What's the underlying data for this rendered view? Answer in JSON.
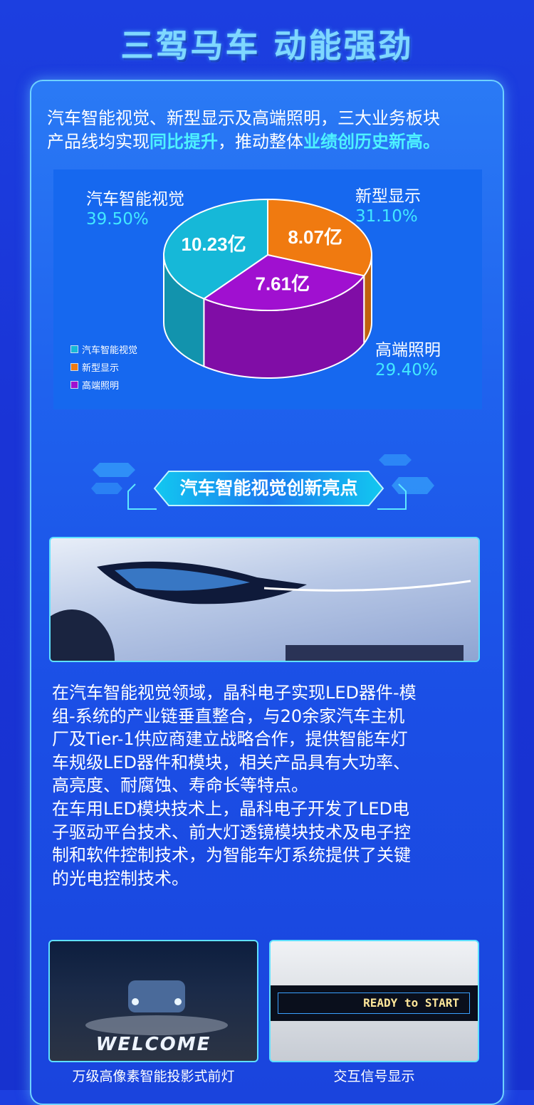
{
  "title": "三驾马车  动能强劲",
  "intro": {
    "line1": "汽车智能视觉、新型显示及高端照明，三大业务板块",
    "line2_a": "产品线均实现",
    "line2_hl1": "同比提升",
    "line2_b": "，推动整体",
    "line2_hl2": "业绩创历史新高。"
  },
  "chart_data": {
    "type": "pie",
    "style": "3d",
    "unit": "亿",
    "slices": [
      {
        "name": "汽车智能视觉",
        "value": 10.23,
        "value_label": "10.23亿",
        "percent": "39.50%",
        "color": "#16b8d8"
      },
      {
        "name": "新型显示",
        "value": 8.07,
        "value_label": "8.07亿",
        "percent": "31.10%",
        "color": "#f07a10"
      },
      {
        "name": "高端照明",
        "value": 7.61,
        "value_label": "7.61亿",
        "percent": "29.40%",
        "color": "#a010d0"
      }
    ],
    "legend_position": "bottom-left"
  },
  "section": {
    "title": "汽车智能视觉创新亮点"
  },
  "body_lines": [
    "在汽车智能视觉领域，晶科电子实现LED器件-模",
    "组-系统的产业链垂直整合，与20余家汽车主机",
    "厂及Tier-1供应商建立战略合作，提供智能车灯",
    "车规级LED器件和模块，相关产品具有大功率、",
    "高亮度、耐腐蚀、寿命长等特点。",
    "在车用LED模块技术上，晶科电子开发了LED电",
    "子驱动平台技术、前大灯透镜模块技术及电子控",
    "制和软件控制技术，为智能车灯系统提供了关键",
    "的光电控制技术。"
  ],
  "gallery": [
    {
      "caption": "万级高像素智能投影式前灯",
      "overlay": "WELCOME"
    },
    {
      "caption": "交互信号显示",
      "overlay": "READY to START"
    }
  ]
}
